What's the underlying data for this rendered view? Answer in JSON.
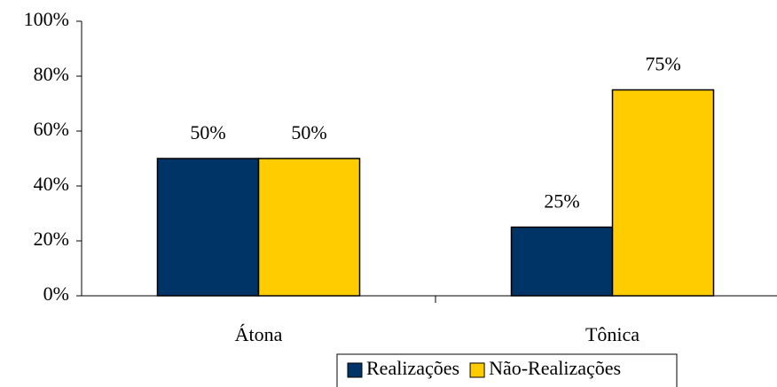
{
  "chart_data": {
    "type": "bar",
    "categories": [
      "Átona",
      "Tônica"
    ],
    "series": [
      {
        "name": "Realizações",
        "color": "#003366",
        "values": [
          50,
          25
        ],
        "value_labels": [
          "50%",
          "25%"
        ]
      },
      {
        "name": "Não-Realizações",
        "color": "#ffcc00",
        "values": [
          50,
          75
        ],
        "value_labels": [
          "50%",
          "75%"
        ]
      }
    ],
    "ylim": [
      0,
      100
    ],
    "yticks": [
      {
        "value": 0,
        "label": "0%"
      },
      {
        "value": 20,
        "label": "20%"
      },
      {
        "value": 40,
        "label": "40%"
      },
      {
        "value": 60,
        "label": "60%"
      },
      {
        "value": 80,
        "label": "80%"
      },
      {
        "value": 100,
        "label": "100%"
      }
    ],
    "legend": "bottom"
  }
}
